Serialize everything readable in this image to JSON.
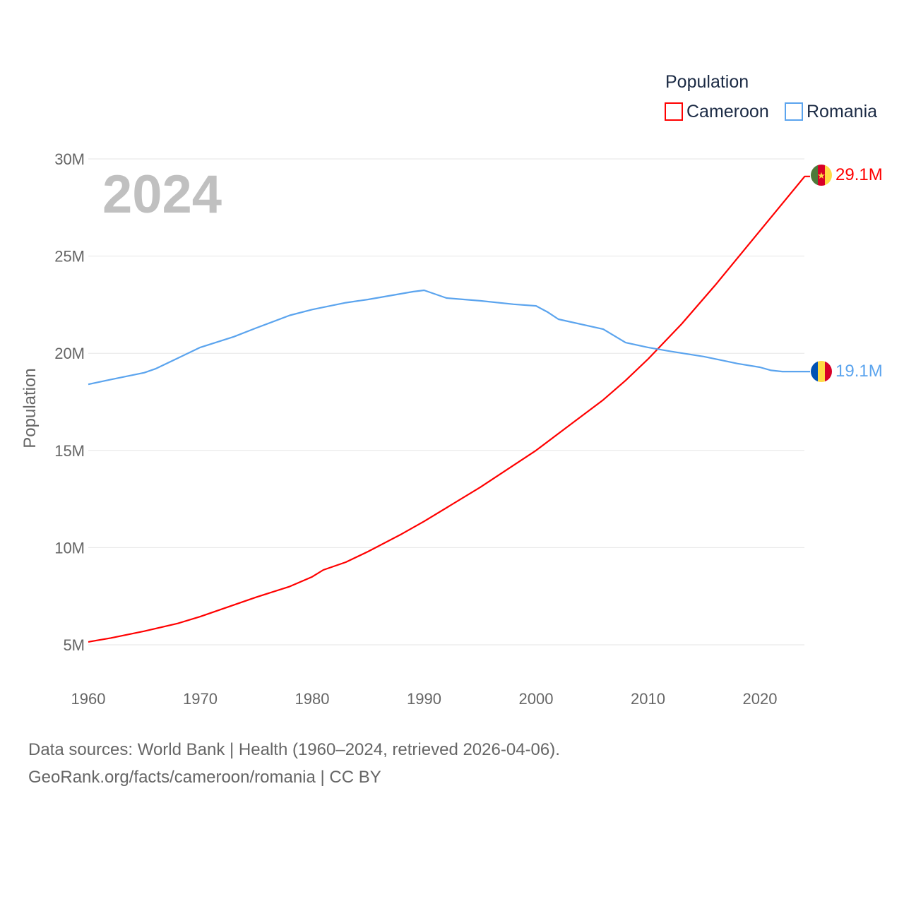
{
  "chart_data": {
    "type": "line",
    "title": "2024",
    "xlabel": "",
    "ylabel": "Population",
    "xlim": [
      1960,
      2024
    ],
    "ylim": [
      5000000,
      30000000
    ],
    "x_ticks": [
      1960,
      1970,
      1980,
      1990,
      2000,
      2010,
      2020
    ],
    "x_tick_labels": [
      "1960",
      "1970",
      "1980",
      "1990",
      "2000",
      "2010",
      "2020"
    ],
    "y_ticks": [
      5000000,
      10000000,
      15000000,
      20000000,
      25000000,
      30000000
    ],
    "y_tick_labels": [
      "5M",
      "10M",
      "15M",
      "20M",
      "25M",
      "30M"
    ],
    "grid": true,
    "legend": {
      "title": "Population",
      "position": "top-right"
    },
    "series": [
      {
        "name": "Cameroon",
        "color": "#ff0000",
        "end_label": "29.1M",
        "flag": "cameroon-flag",
        "x": [
          1960,
          1962,
          1965,
          1968,
          1970,
          1975,
          1978,
          1980,
          1981,
          1983,
          1985,
          1988,
          1990,
          1995,
          2000,
          2003,
          2006,
          2008,
          2010,
          2013,
          2016,
          2020,
          2024
        ],
        "values": [
          5.15,
          5.35,
          5.7,
          6.1,
          6.45,
          7.45,
          8.0,
          8.5,
          8.85,
          9.25,
          9.8,
          10.7,
          11.35,
          13.1,
          15.0,
          16.3,
          17.6,
          18.6,
          19.7,
          21.5,
          23.5,
          26.3,
          29.1
        ]
      },
      {
        "name": "Romania",
        "color": "#5ba4ee",
        "end_label": "19.1M",
        "flag": "romania-flag",
        "x": [
          1960,
          1962,
          1965,
          1966,
          1968,
          1970,
          1973,
          1975,
          1978,
          1980,
          1983,
          1985,
          1989,
          1990,
          1992,
          1995,
          1998,
          2000,
          2001,
          2002,
          2006,
          2008,
          2010,
          2012,
          2015,
          2018,
          2020,
          2021,
          2022,
          2024
        ],
        "values": [
          18.4,
          18.65,
          19.0,
          19.2,
          19.75,
          20.3,
          20.85,
          21.3,
          21.95,
          22.25,
          22.6,
          22.77,
          23.17,
          23.24,
          22.84,
          22.7,
          22.52,
          22.44,
          22.13,
          21.75,
          21.24,
          20.55,
          20.3,
          20.1,
          19.83,
          19.47,
          19.28,
          19.12,
          19.06,
          19.06
        ]
      }
    ]
  },
  "footer": {
    "line1": "Data sources: World Bank | Health (1960–2024, retrieved 2026-04-06).",
    "line2": "GeoRank.org/facts/cameroon/romania | CC BY"
  }
}
